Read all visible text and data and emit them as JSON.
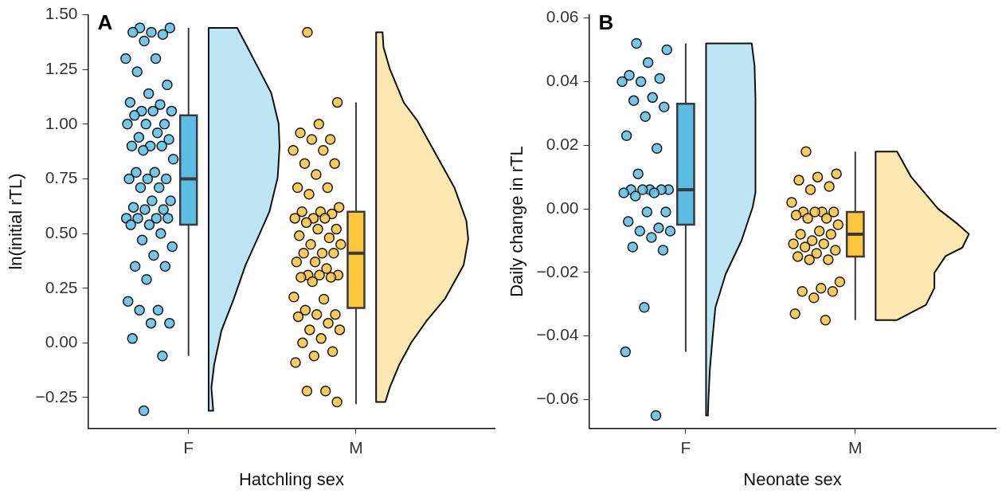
{
  "chart_data": [
    {
      "type": "box",
      "annotations": [
        "A"
      ],
      "categories": [
        "F",
        "M"
      ],
      "xlabel": "Hatchling sex",
      "ylabel": "ln(initial rTL)",
      "ylim": [
        -0.39,
        1.5
      ],
      "yticks": [
        {
          "value": -0.25,
          "label": "−0.25"
        },
        {
          "value": 0,
          "label": "0.00"
        },
        {
          "value": 0.25,
          "label": "0.25"
        },
        {
          "value": 0.5,
          "label": "0.50"
        },
        {
          "value": 0.75,
          "label": "0.75"
        },
        {
          "value": 1,
          "label": "1.00"
        },
        {
          "value": 1.25,
          "label": "1.25"
        },
        {
          "value": 1.5,
          "label": "1.50"
        }
      ],
      "grid": false,
      "legend": false,
      "marker": "circle",
      "boxes": [
        {
          "low": -0.06,
          "q1": 0.54,
          "median": 0.75,
          "q3": 1.04,
          "high": 1.44
        },
        {
          "low": -0.28,
          "q1": 0.16,
          "median": 0.41,
          "q3": 0.6,
          "high": 1.1
        }
      ],
      "colors": [
        "#5bbde4",
        "#fcc63f"
      ],
      "series": [
        {
          "type": "scatter",
          "color": "#5bbde4",
          "x": [
            "F",
            "F",
            "F",
            "F",
            "F",
            "F",
            "F",
            "F",
            "F",
            "F",
            "F",
            "F",
            "F",
            "F",
            "F",
            "F",
            "F",
            "F",
            "F",
            "F",
            "F",
            "F",
            "F",
            "F",
            "F",
            "F",
            "F",
            "F",
            "F",
            "F",
            "F",
            "F",
            "F",
            "F",
            "F",
            "F",
            "F",
            "F",
            "F",
            "F",
            "F",
            "F",
            "F",
            "F",
            "F",
            "F",
            "F",
            "F",
            "F",
            "F",
            "F",
            "F",
            "F",
            "F",
            "F",
            "F",
            "F",
            "F",
            "F",
            "F",
            "F"
          ],
          "values": [
            1.44,
            1.44,
            1.42,
            1.42,
            1.41,
            1.38,
            1.3,
            1.3,
            1.24,
            1.18,
            1.14,
            1.1,
            1.09,
            1.06,
            1.06,
            1.06,
            1.04,
            1,
            1,
            1,
            0.96,
            0.94,
            0.93,
            0.9,
            0.9,
            0.9,
            0.88,
            0.84,
            0.78,
            0.78,
            0.75,
            0.75,
            0.75,
            0.71,
            0.71,
            0.65,
            0.65,
            0.62,
            0.61,
            0.61,
            0.57,
            0.57,
            0.57,
            0.57,
            0.54,
            0.54,
            0.5,
            0.47,
            0.44,
            0.4,
            0.35,
            0.35,
            0.29,
            0.19,
            0.15,
            0.15,
            0.09,
            0.09,
            0.02,
            -0.06,
            -0.31
          ]
        },
        {
          "type": "scatter",
          "color": "#f9c23c",
          "x": [
            "M",
            "M",
            "M",
            "M",
            "M",
            "M",
            "M",
            "M",
            "M",
            "M",
            "M",
            "M",
            "M",
            "M",
            "M",
            "M",
            "M",
            "M",
            "M",
            "M",
            "M",
            "M",
            "M",
            "M",
            "M",
            "M",
            "M",
            "M",
            "M",
            "M",
            "M",
            "M",
            "M",
            "M",
            "M",
            "M",
            "M",
            "M",
            "M",
            "M",
            "M",
            "M",
            "M",
            "M",
            "M",
            "M",
            "M",
            "M",
            "M",
            "M",
            "M",
            "M",
            "M",
            "M",
            "M",
            "M",
            "M"
          ],
          "values": [
            1.42,
            1.1,
            1,
            0.96,
            0.93,
            0.93,
            0.88,
            0.88,
            0.82,
            0.82,
            0.77,
            0.71,
            0.71,
            0.68,
            0.62,
            0.6,
            0.6,
            0.59,
            0.57,
            0.57,
            0.57,
            0.55,
            0.52,
            0.52,
            0.49,
            0.48,
            0.45,
            0.45,
            0.41,
            0.41,
            0.41,
            0.37,
            0.37,
            0.34,
            0.31,
            0.31,
            0.31,
            0.3,
            0.3,
            0.28,
            0.21,
            0.2,
            0.15,
            0.13,
            0.13,
            0.12,
            0.09,
            0.06,
            0.06,
            0.02,
            0,
            -0.04,
            -0.06,
            -0.09,
            -0.22,
            -0.22,
            -0.27
          ]
        }
      ]
    },
    {
      "type": "box",
      "annotations": [
        "B"
      ],
      "categories": [
        "F",
        "M"
      ],
      "xlabel": "Neonate sex",
      "ylabel": "Daily change in rTL",
      "ylim": [
        -0.069,
        0.061
      ],
      "yticks": [
        {
          "value": -0.06,
          "label": "−0.06"
        },
        {
          "value": -0.04,
          "label": "−0.04"
        },
        {
          "value": -0.02,
          "label": "−0.02"
        },
        {
          "value": 0,
          "label": "0.00"
        },
        {
          "value": 0.02,
          "label": "0.02"
        },
        {
          "value": 0.04,
          "label": "0.04"
        },
        {
          "value": 0.06,
          "label": "0.06"
        }
      ],
      "grid": false,
      "legend": false,
      "marker": "circle",
      "boxes": [
        {
          "low": -0.045,
          "q1": -0.005,
          "median": 0.006,
          "q3": 0.033,
          "high": 0.052
        },
        {
          "low": -0.035,
          "q1": -0.015,
          "median": -0.008,
          "q3": -0.001,
          "high": 0.018
        }
      ],
      "colors": [
        "#5bbde4",
        "#fcc63f"
      ],
      "series": [
        {
          "type": "scatter",
          "color": "#5bbde4",
          "x": [
            "F",
            "F",
            "F",
            "F",
            "F",
            "F",
            "F",
            "F",
            "F",
            "F",
            "F",
            "F",
            "F",
            "F",
            "F",
            "F",
            "F",
            "F",
            "F",
            "F",
            "F",
            "F",
            "F",
            "F",
            "F",
            "F",
            "F",
            "F",
            "F",
            "F",
            "F",
            "F",
            "F",
            "F"
          ],
          "values": [
            0.052,
            0.05,
            0.046,
            0.042,
            0.041,
            0.04,
            0.04,
            0.035,
            0.034,
            0.032,
            0.029,
            0.023,
            0.019,
            0.011,
            0.006,
            0.006,
            0.006,
            0.006,
            0.006,
            0.005,
            0.005,
            0.004,
            -0.001,
            -0.001,
            -0.004,
            -0.006,
            -0.007,
            -0.007,
            -0.009,
            -0.012,
            -0.013,
            -0.031,
            -0.045,
            -0.065
          ]
        },
        {
          "type": "scatter",
          "color": "#f9c23c",
          "x": [
            "M",
            "M",
            "M",
            "M",
            "M",
            "M",
            "M",
            "M",
            "M",
            "M",
            "M",
            "M",
            "M",
            "M",
            "M",
            "M",
            "M",
            "M",
            "M",
            "M",
            "M",
            "M",
            "M",
            "M",
            "M",
            "M",
            "M",
            "M",
            "M",
            "M",
            "M",
            "M",
            "M",
            "M"
          ],
          "values": [
            0.018,
            0.011,
            0.01,
            0.009,
            0.007,
            0.006,
            0.002,
            -0.001,
            -0.001,
            -0.001,
            -0.001,
            -0.002,
            -0.003,
            -0.003,
            -0.005,
            -0.007,
            -0.008,
            -0.008,
            -0.01,
            -0.011,
            -0.011,
            -0.012,
            -0.013,
            -0.014,
            -0.015,
            -0.016,
            -0.016,
            -0.023,
            -0.025,
            -0.026,
            -0.026,
            -0.028,
            -0.033,
            -0.035
          ]
        }
      ]
    }
  ]
}
